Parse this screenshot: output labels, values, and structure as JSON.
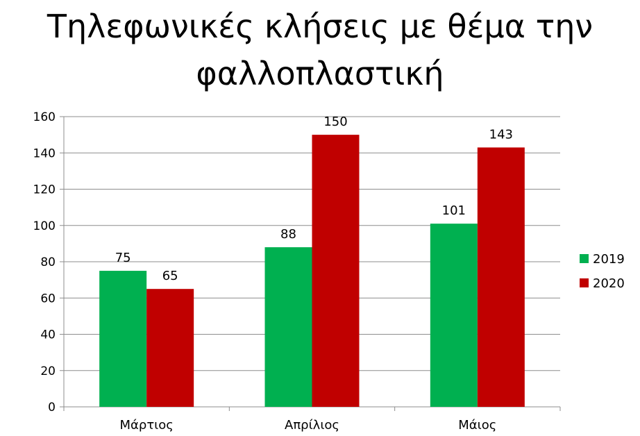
{
  "chart_data": {
    "type": "bar",
    "title": "Τηλεφωνικές κλήσεις με θέμα την φαλλοπλαστική",
    "categories": [
      "Μάρτιος",
      "Απρίλιος",
      "Μάιος"
    ],
    "series": [
      {
        "name": "2019",
        "values": [
          75,
          88,
          101
        ],
        "color": "#00b050"
      },
      {
        "name": "2020",
        "values": [
          65,
          150,
          143
        ],
        "color": "#c00000"
      }
    ],
    "xlabel": "",
    "ylabel": "",
    "ylim": [
      0,
      160
    ],
    "yticks": [
      0,
      20,
      40,
      60,
      80,
      100,
      120,
      140,
      160
    ],
    "grid": true,
    "legend": "right",
    "data_labels": true
  }
}
